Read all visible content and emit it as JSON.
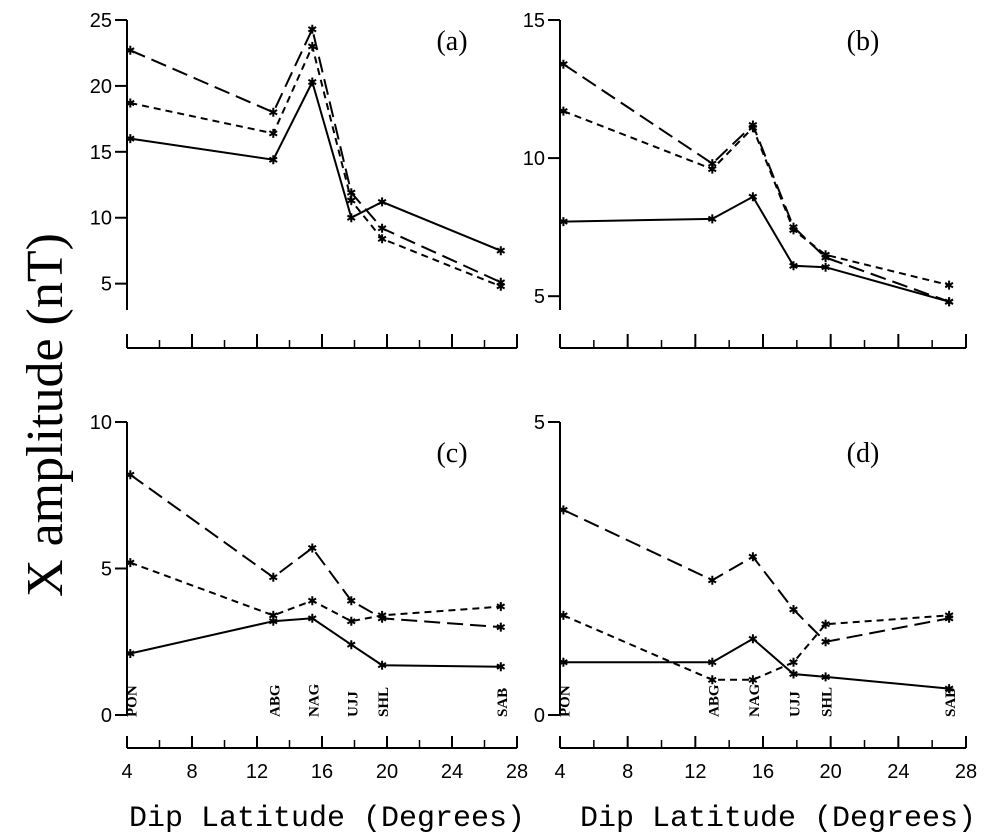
{
  "figure": {
    "ylabel": "X amplitude (nT)",
    "xlabel_left": "Dip Latitude (Degrees)",
    "xlabel_right": "Dip Latitude (Degrees)",
    "line_color": "#000000",
    "background": "#ffffff"
  },
  "chart_data": [
    {
      "type": "line",
      "panel_label": "(a)",
      "xlim": [
        4,
        28
      ],
      "ylim": [
        3,
        25
      ],
      "yticks": [
        5,
        10,
        15,
        20,
        25
      ],
      "x": [
        4.2,
        13.0,
        15.4,
        17.8,
        19.7,
        27.0
      ],
      "series": [
        {
          "line_style": "solid",
          "values": [
            16.0,
            14.4,
            20.3,
            10.0,
            11.2,
            7.5
          ]
        },
        {
          "line_style": "short-dash",
          "values": [
            18.7,
            16.4,
            23.0,
            11.3,
            8.4,
            4.8
          ]
        },
        {
          "line_style": "long-dash",
          "values": [
            22.7,
            18.0,
            24.3,
            11.9,
            9.2,
            5.1
          ]
        }
      ]
    },
    {
      "type": "line",
      "panel_label": "(b)",
      "xlim": [
        4,
        28
      ],
      "ylim": [
        4.5,
        15
      ],
      "yticks": [
        5,
        10,
        15
      ],
      "x": [
        4.2,
        13.0,
        15.4,
        17.8,
        19.7,
        27.0
      ],
      "series": [
        {
          "line_style": "solid",
          "values": [
            7.7,
            7.8,
            8.6,
            6.1,
            6.05,
            4.8
          ]
        },
        {
          "line_style": "short-dash",
          "values": [
            11.7,
            9.6,
            11.1,
            7.4,
            6.5,
            5.4
          ]
        },
        {
          "line_style": "long-dash",
          "values": [
            13.4,
            9.8,
            11.2,
            7.5,
            6.4,
            4.8
          ]
        }
      ]
    },
    {
      "type": "line",
      "panel_label": "(c)",
      "xlim": [
        4,
        28
      ],
      "ylim": [
        0,
        10
      ],
      "yticks": [
        0,
        5,
        10
      ],
      "x": [
        4.2,
        13.0,
        15.4,
        17.8,
        19.7,
        27.0
      ],
      "station_labels": [
        "PON",
        "ABG",
        "NAG",
        "UJJ",
        "SHL",
        "SAB"
      ],
      "series": [
        {
          "line_style": "solid",
          "values": [
            2.1,
            3.2,
            3.3,
            2.4,
            1.7,
            1.65
          ]
        },
        {
          "line_style": "short-dash",
          "values": [
            5.2,
            3.4,
            3.9,
            3.2,
            3.4,
            3.7
          ]
        },
        {
          "line_style": "long-dash",
          "values": [
            8.2,
            4.7,
            5.7,
            3.9,
            3.3,
            3.0
          ]
        }
      ]
    },
    {
      "type": "line",
      "panel_label": "(d)",
      "xlim": [
        4,
        28
      ],
      "ylim": [
        0,
        5
      ],
      "yticks": [
        0,
        5
      ],
      "x": [
        4.2,
        13.0,
        15.4,
        17.8,
        19.7,
        27.0
      ],
      "station_labels": [
        "PON",
        "ABG",
        "NAG",
        "UJJ",
        "SHL",
        "SAB"
      ],
      "series": [
        {
          "line_style": "solid",
          "values": [
            0.9,
            0.9,
            1.3,
            0.7,
            0.65,
            0.45
          ]
        },
        {
          "line_style": "short-dash",
          "values": [
            1.7,
            0.6,
            0.6,
            0.9,
            1.55,
            1.7
          ]
        },
        {
          "line_style": "long-dash",
          "values": [
            3.5,
            2.3,
            2.7,
            1.8,
            1.25,
            1.65
          ]
        }
      ]
    }
  ],
  "xticks": [
    4,
    8,
    12,
    16,
    20,
    24,
    28
  ]
}
